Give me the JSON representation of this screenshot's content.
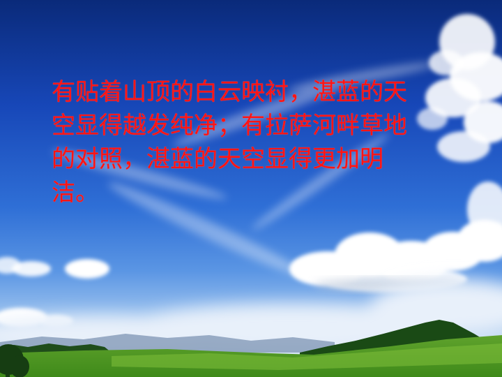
{
  "slide": {
    "caption": "有贴着山顶的白云映衬，湛蓝的天空显得越发纯净；有拉萨河畔草地的对照，湛蓝的天空显得更加明洁。"
  }
}
